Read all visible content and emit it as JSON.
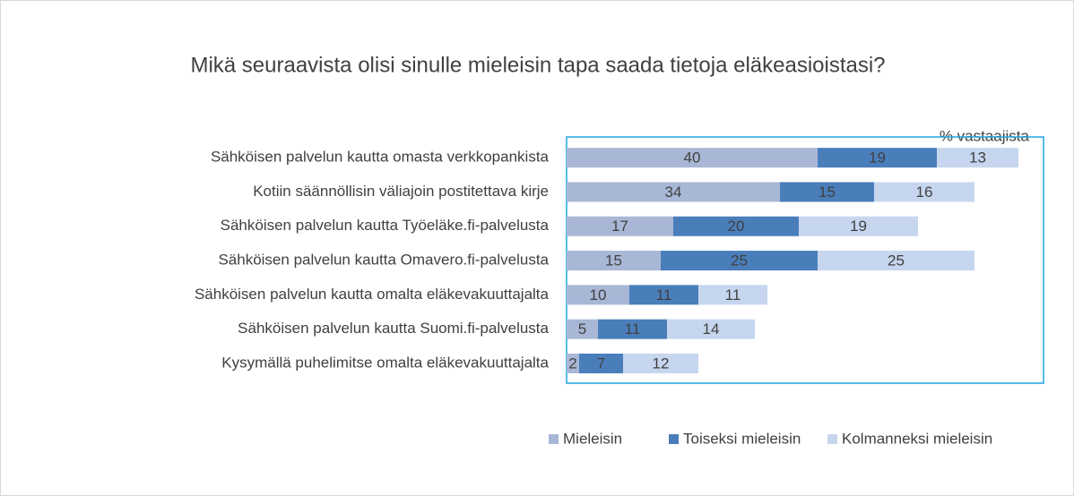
{
  "chart_data": {
    "type": "stacked-bar-horizontal",
    "title": "Mikä seuraavista olisi sinulle mieleisin tapa saada tietoja eläkeasioistasi?",
    "subtitle": "% vastaajista",
    "categories": [
      "Sähköisen palvelun kautta omasta verkkopankista",
      "Kotiin säännöllisin väliajoin postitettava kirje",
      "Sähköisen palvelun kautta Työeläke.fi-palvelusta",
      "Sähköisen palvelun kautta Omavero.fi-palvelusta",
      "Sähköisen palvelun kautta omalta eläkevakuuttajalta",
      "Sähköisen palvelun kautta Suomi.fi-palvelusta",
      "Kysymällä puhelimitse omalta eläkevakuuttajalta"
    ],
    "series": [
      {
        "name": "Mieleisin",
        "color": "#a9b7d6",
        "values": [
          40,
          34,
          17,
          15,
          10,
          5,
          2
        ]
      },
      {
        "name": "Toiseksi mieleisin",
        "color": "#4a7ebb",
        "values": [
          19,
          15,
          20,
          25,
          11,
          11,
          7
        ]
      },
      {
        "name": "Kolmanneksi mieleisin",
        "color": "#c6d6ef",
        "values": [
          13,
          16,
          19,
          25,
          11,
          14,
          12
        ]
      }
    ],
    "xlim": [
      0,
      76
    ],
    "legend": "bottom"
  }
}
